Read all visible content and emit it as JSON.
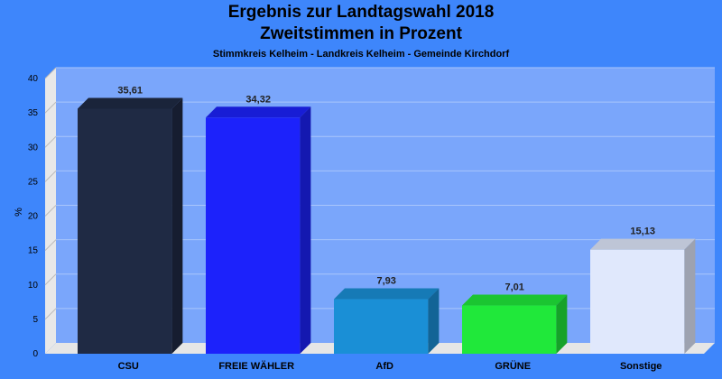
{
  "chart_data": {
    "type": "bar",
    "title": "Ergebnis zur Landtagswahl 2018",
    "subtitle": "Zweitstimmen in Prozent",
    "caption": "Stimmkreis Kelheim - Landkreis Kelheim - Gemeinde Kirchdorf",
    "ylabel": "%",
    "xlabel": "",
    "ylim": [
      0,
      40
    ],
    "yticks": [
      0,
      5,
      10,
      15,
      20,
      25,
      30,
      35,
      40
    ],
    "categories": [
      "CSU",
      "FREIE WÄHLER",
      "AfD",
      "GRÜNE",
      "Sonstige"
    ],
    "values": [
      35.61,
      34.32,
      7.93,
      7.01,
      15.13
    ],
    "value_labels": [
      "35,61",
      "34,32",
      "7,93",
      "7,01",
      "15,13"
    ],
    "colors": [
      "#1f2a44",
      "#1c22fb",
      "#1a8fd6",
      "#20e83a",
      "#e0e8fc"
    ],
    "grid": true,
    "legend": "none"
  },
  "colors": {
    "background": "#3e86fb",
    "plot_area": "#7aa6fb",
    "floor": "#e6e6e6"
  }
}
